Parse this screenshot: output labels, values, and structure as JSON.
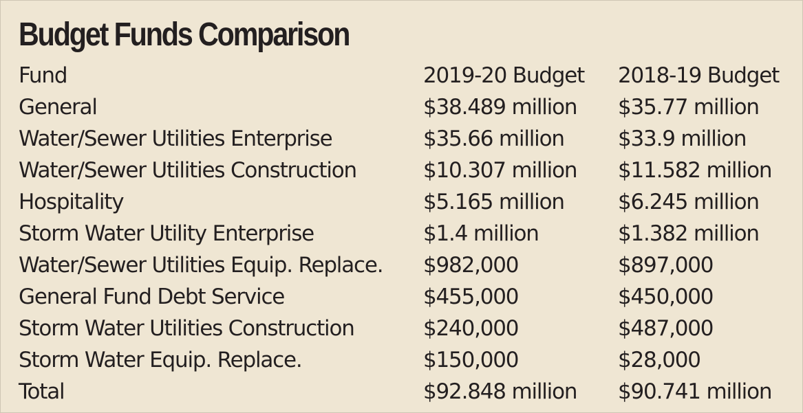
{
  "chart_data": {
    "type": "table",
    "title": "Budget Funds Comparison",
    "columns": [
      "Fund",
      "2019-20 Budget",
      "2018-19 Budget"
    ],
    "rows": [
      [
        "General",
        "$38.489 million",
        "$35.77 million"
      ],
      [
        "Water/Sewer Utilities Enterprise",
        "$35.66 million",
        "$33.9 million"
      ],
      [
        "Water/Sewer Utilities Construction",
        "$10.307 million",
        "$11.582 million"
      ],
      [
        "Hospitality",
        "$5.165 million",
        "$6.245 million"
      ],
      [
        "Storm Water Utility Enterprise",
        "$1.4 million",
        "$1.382 million"
      ],
      [
        "Water/Sewer Utilities Equip. Replace.",
        "$982,000",
        "$897,000"
      ],
      [
        "General Fund Debt Service",
        "$455,000",
        "$450,000"
      ],
      [
        "Storm Water Utilities Construction",
        "$240,000",
        "$487,000"
      ],
      [
        "Storm Water Equip. Replace.",
        "$150,000",
        "$28,000"
      ],
      [
        "Total",
        "$92.848 million",
        "$90.741 million"
      ]
    ]
  },
  "colors": {
    "background": "#efe6d3",
    "text": "#231f20"
  }
}
